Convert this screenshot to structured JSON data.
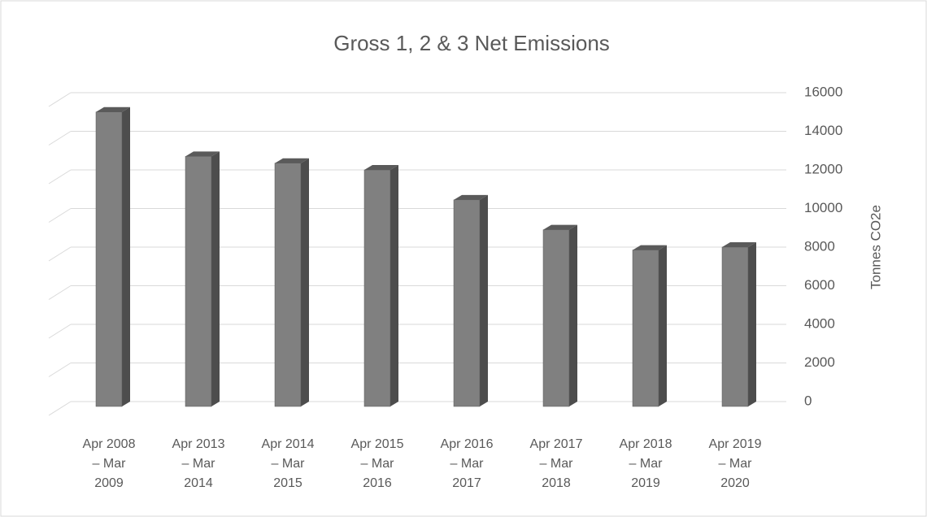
{
  "chart_data": {
    "type": "bar",
    "title": "Gross 1, 2 & 3 Net Emissions",
    "y_label": "Tonnes CO2e",
    "categories": [
      "Apr 2008 – Mar 2009",
      "Apr 2013 – Mar 2014",
      "Apr 2014 – Mar 2015",
      "Apr 2015 – Mar 2016",
      "Apr 2016 – Mar 2017",
      "Apr 2017 – Mar 2018",
      "Apr 2018 – Mar 2019",
      "Apr 2019 – Mar 2020"
    ],
    "values": [
      15000,
      12700,
      12350,
      12000,
      10450,
      8900,
      7850,
      8000
    ],
    "color": "#808080",
    "ylim": [
      0,
      16000
    ],
    "yticks": [
      0,
      2000,
      4000,
      6000,
      8000,
      10000,
      12000,
      14000,
      16000
    ],
    "grid": true
  }
}
